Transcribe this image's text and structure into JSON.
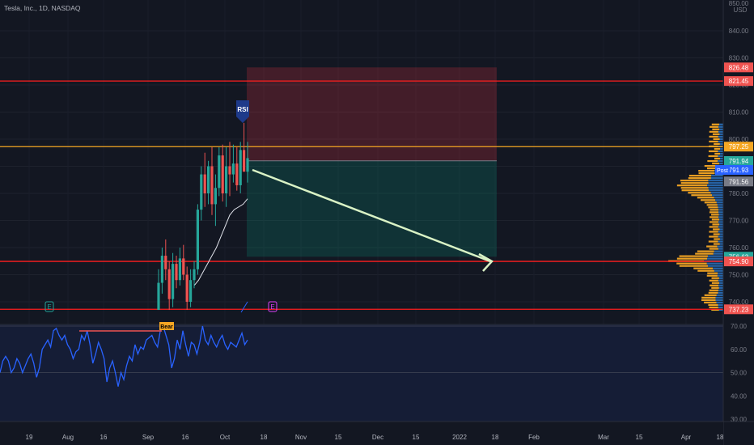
{
  "header": {
    "title": "Tesla, Inc., 1D, NASDAQ",
    "currency": "USD",
    "top_price": "850.00"
  },
  "colors": {
    "background": "#131722",
    "up": "#26a69a",
    "down": "#ef5350",
    "resistance_line": "#ff1e1e",
    "gold_line": "#f5a623",
    "rsi_line": "#2962ff",
    "volume_profile_up": "#2a6eb8",
    "volume_profile_down": "#f5a623",
    "target_arrow": "#d9f2c5"
  },
  "chart_data": [
    {
      "type": "candlestick",
      "symbol": "Tesla, Inc.",
      "interval": "1D",
      "exchange": "NASDAQ",
      "price_axis": {
        "range": [
          735,
          850
        ],
        "ticks": [
          "850.00",
          "840.00",
          "830.00",
          "820.00",
          "810.00",
          "800.00",
          "790.00",
          "780.00",
          "770.00",
          "760.00",
          "750.00",
          "740.00"
        ]
      },
      "time_axis": {
        "labels": [
          "19",
          "Aug",
          "16",
          "Sep",
          "16",
          "Oct",
          "18",
          "Nov",
          "15",
          "Dec",
          "15",
          "2022",
          "18",
          "Feb",
          "Mar",
          "15",
          "Apr",
          "18"
        ]
      },
      "candles": [
        {
          "o": 737,
          "h": 752,
          "l": 737,
          "c": 747
        },
        {
          "o": 747,
          "h": 760,
          "l": 743,
          "c": 757
        },
        {
          "o": 757,
          "h": 763,
          "l": 748,
          "c": 752
        },
        {
          "o": 752,
          "h": 755,
          "l": 737,
          "c": 741
        },
        {
          "o": 741,
          "h": 758,
          "l": 738,
          "c": 754
        },
        {
          "o": 754,
          "h": 757,
          "l": 745,
          "c": 748
        },
        {
          "o": 748,
          "h": 760,
          "l": 746,
          "c": 756
        },
        {
          "o": 756,
          "h": 761,
          "l": 748,
          "c": 750
        },
        {
          "o": 750,
          "h": 753,
          "l": 737,
          "c": 740
        },
        {
          "o": 740,
          "h": 752,
          "l": 738,
          "c": 748
        },
        {
          "o": 748,
          "h": 755,
          "l": 745,
          "c": 752
        },
        {
          "o": 752,
          "h": 776,
          "l": 750,
          "c": 774
        },
        {
          "o": 774,
          "h": 790,
          "l": 770,
          "c": 787
        },
        {
          "o": 787,
          "h": 795,
          "l": 775,
          "c": 780
        },
        {
          "o": 780,
          "h": 792,
          "l": 776,
          "c": 790
        },
        {
          "o": 790,
          "h": 797,
          "l": 772,
          "c": 776
        },
        {
          "o": 776,
          "h": 787,
          "l": 768,
          "c": 782
        },
        {
          "o": 782,
          "h": 797,
          "l": 779,
          "c": 794
        },
        {
          "o": 794,
          "h": 798,
          "l": 777,
          "c": 780
        },
        {
          "o": 780,
          "h": 797,
          "l": 775,
          "c": 790
        },
        {
          "o": 790,
          "h": 799,
          "l": 779,
          "c": 787
        },
        {
          "o": 787,
          "h": 798,
          "l": 784,
          "c": 791
        },
        {
          "o": 791,
          "h": 797,
          "l": 781,
          "c": 783
        },
        {
          "o": 783,
          "h": 799,
          "l": 780,
          "c": 796
        },
        {
          "o": 796,
          "h": 806,
          "l": 788,
          "c": 788
        },
        {
          "o": 788,
          "h": 799,
          "l": 784,
          "c": 793
        }
      ],
      "moving_average": [
        746,
        748,
        751,
        754,
        757,
        760,
        764,
        768,
        772,
        774,
        775,
        776,
        778
      ],
      "horizontal_levels": [
        {
          "price": 821.45,
          "label": "821.45",
          "color": "#ff1e1e"
        },
        {
          "price": 797.25,
          "label": "797.25",
          "color": "#f5a623"
        },
        {
          "price": 754.9,
          "label": "754.90",
          "color": "#ff1e1e"
        },
        {
          "price": 737.23,
          "label": "737.23",
          "color": "#ff1e1e"
        }
      ],
      "price_labels": [
        {
          "price": 826.48,
          "text": "826.48",
          "color": "#ef5350"
        },
        {
          "price": 821.45,
          "text": "821.45",
          "color": "#ef5350"
        },
        {
          "price": 797.25,
          "text": "797.25",
          "color": "#f5a623"
        },
        {
          "price": 791.94,
          "text": "791.94",
          "color": "#26a69a"
        },
        {
          "price": 791.93,
          "text": "791.93",
          "color": "#2962ff"
        },
        {
          "price": 791.56,
          "text": "791.56",
          "color": "#787b86"
        },
        {
          "price": 756.63,
          "text": "756.63",
          "color": "#26a69a"
        },
        {
          "price": 754.9,
          "text": "754.90",
          "color": "#ef5350"
        },
        {
          "price": 737.23,
          "text": "737.23",
          "color": "#ef5350"
        }
      ],
      "post_label": "Post",
      "short_position": {
        "entry": 792,
        "stop": 826.48,
        "target": 756.63
      },
      "markers": [
        {
          "text": "RSI",
          "price": 810
        },
        {
          "text": "E"
        },
        {
          "text": "E"
        }
      ]
    },
    {
      "type": "line",
      "name": "RSI",
      "ylim": [
        29,
        72
      ],
      "ticks": [
        "70.00",
        "60.00",
        "50.00",
        "40.00",
        "30.00"
      ],
      "bands": [
        70,
        50
      ],
      "divergence_label": "Bear",
      "values": [
        50,
        55,
        57,
        55,
        50,
        52,
        56,
        54,
        50,
        53,
        56,
        58,
        54,
        48,
        52,
        60,
        62,
        64,
        61,
        68,
        69,
        66,
        64,
        66,
        62,
        60,
        56,
        59,
        60,
        66,
        64,
        68,
        62,
        54,
        58,
        63,
        60,
        56,
        46,
        52,
        55,
        50,
        44,
        50,
        47,
        53,
        57,
        55,
        62,
        58,
        61,
        60,
        64,
        65,
        66,
        63,
        61,
        68,
        70,
        66,
        62,
        52,
        56,
        64,
        60,
        68,
        62,
        57,
        63,
        62,
        58,
        63,
        70,
        64,
        62,
        66,
        63,
        61,
        64,
        66,
        62,
        60,
        63,
        62,
        61,
        64,
        67,
        62,
        64
      ]
    }
  ]
}
